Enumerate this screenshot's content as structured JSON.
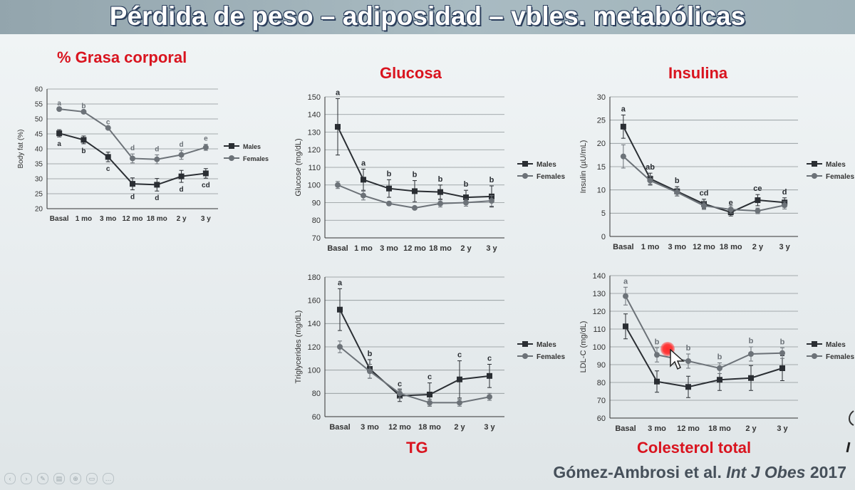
{
  "slide": {
    "title": "Pérdida de peso – adiposidad – vbles. metabólicas",
    "citation_authors": "Gómez-Ambrosi et al.",
    "citation_journal": "Int J Obes",
    "citation_year": "2017",
    "accent_color": "#d9141f"
  },
  "toolbar": {
    "icons": [
      "previous-icon",
      "next-icon",
      "pen-icon",
      "slides-icon",
      "zoom-icon",
      "camera-icon",
      "more-icon"
    ]
  },
  "chart_data": [
    {
      "id": "bodyfat",
      "panel_title": "% Grasa corporal",
      "type": "line",
      "categories": [
        "Basal",
        "1 mo",
        "3 mo",
        "12 mo",
        "18 mo",
        "2 y",
        "3 y"
      ],
      "ylabel": "Body fat (%)",
      "ylim": [
        20,
        60
      ],
      "ystep": 5,
      "grid": true,
      "legend": "right",
      "series": [
        {
          "name": "Males",
          "marker": "square",
          "values": [
            45.2,
            43.0,
            37.3,
            28.3,
            28.0,
            30.8,
            31.8
          ],
          "err": [
            1.2,
            1.3,
            1.6,
            2.0,
            2.1,
            2.0,
            1.6
          ],
          "sig": [
            "a",
            "b",
            "c",
            "d",
            "d",
            "d",
            "cd"
          ],
          "sig_side": "below"
        },
        {
          "name": "Females",
          "marker": "circle",
          "values": [
            53.3,
            52.4,
            47.0,
            36.8,
            36.5,
            38.0,
            40.5
          ],
          "err": [
            0,
            0,
            0,
            1.5,
            1.5,
            1.5,
            1.0
          ],
          "sig": [
            "a",
            "b",
            "c",
            "d",
            "d",
            "d",
            "e"
          ],
          "sig_side": "above"
        }
      ]
    },
    {
      "id": "glucose",
      "panel_title": "Glucosa",
      "type": "line",
      "categories": [
        "Basal",
        "1 mo",
        "3 mo",
        "12 mo",
        "18 mo",
        "2 y",
        "3 y"
      ],
      "ylabel": "Glucose (mg/dL)",
      "ylim": [
        70,
        150
      ],
      "ystep": 10,
      "grid": true,
      "legend": "right",
      "series": [
        {
          "name": "Males",
          "marker": "square",
          "values": [
            133,
            103,
            98,
            96.5,
            96,
            93,
            93.5
          ],
          "err": [
            16,
            6,
            5,
            6,
            4,
            4,
            6
          ],
          "sig": [
            "a",
            "a",
            "b",
            "b",
            "b",
            "b",
            "b"
          ],
          "sig_side": "above"
        },
        {
          "name": "Females",
          "marker": "circle",
          "values": [
            100,
            94,
            89.5,
            87,
            89.5,
            90,
            91
          ],
          "err": [
            2,
            2.5,
            0,
            0,
            2,
            2,
            3
          ],
          "sig": [],
          "sig_side": "above"
        }
      ]
    },
    {
      "id": "insulin",
      "panel_title": "Insulina",
      "type": "line",
      "categories": [
        "Basal",
        "1 mo",
        "3 mo",
        "12 mo",
        "18 mo",
        "2 y",
        "3 y"
      ],
      "ylabel": "Insulin (µU/mL)",
      "ylim": [
        0,
        30
      ],
      "ystep": 5,
      "grid": true,
      "legend": "right",
      "series": [
        {
          "name": "Males",
          "marker": "square",
          "values": [
            23.6,
            12.4,
            9.7,
            7.0,
            5.2,
            7.8,
            7.3
          ],
          "err": [
            2.5,
            1.2,
            1.0,
            1.0,
            0.8,
            1.2,
            1.0
          ],
          "sig": [
            "a",
            "ab",
            "b",
            "cd",
            "e",
            "ce",
            "d"
          ],
          "sig_side": "above"
        },
        {
          "name": "Females",
          "marker": "circle",
          "values": [
            17.2,
            12.0,
            9.5,
            6.6,
            5.8,
            5.5,
            6.7
          ],
          "err": [
            2.5,
            1.0,
            0.8,
            0.8,
            0.8,
            0.6,
            0.8
          ],
          "sig": [],
          "sig_side": "above"
        }
      ]
    },
    {
      "id": "tg",
      "panel_title": "TG",
      "type": "line",
      "categories": [
        "Basal",
        "3 mo",
        "12 mo",
        "18 mo",
        "2 y",
        "3 y"
      ],
      "ylabel": "Triglycerides (mg/dL)",
      "ylim": [
        60,
        180
      ],
      "ystep": 20,
      "grid": true,
      "legend": "right",
      "series": [
        {
          "name": "Males",
          "marker": "square",
          "values": [
            152,
            101,
            78,
            79,
            92,
            95
          ],
          "err": [
            18,
            8,
            5,
            10,
            16,
            10
          ],
          "sig": [
            "a",
            "b",
            "c",
            "c",
            "c",
            "c"
          ],
          "sig_side": "above"
        },
        {
          "name": "Females",
          "marker": "circle",
          "values": [
            120,
            99,
            80,
            72,
            72,
            77
          ],
          "err": [
            5,
            6,
            4,
            3,
            3,
            3
          ],
          "sig": [],
          "sig_side": "above"
        }
      ]
    },
    {
      "id": "ldl",
      "panel_title": "Colesterol total",
      "type": "line",
      "categories": [
        "Basal",
        "3 mo",
        "12 mo",
        "18 mo",
        "2 y",
        "3 y"
      ],
      "ylabel": "LDL-C (mg/dL)",
      "ylim": [
        60,
        140
      ],
      "ystep": 10,
      "grid": true,
      "legend": "right",
      "series": [
        {
          "name": "Males",
          "marker": "square",
          "values": [
            111.5,
            80.5,
            77.5,
            81.5,
            82.5,
            88
          ],
          "err": [
            7,
            6,
            6,
            6,
            7,
            7
          ],
          "sig": [],
          "sig_side": "above"
        },
        {
          "name": "Females",
          "marker": "circle",
          "values": [
            128.5,
            95.5,
            92,
            88,
            96,
            96.5
          ],
          "err": [
            5,
            4,
            4,
            3,
            4,
            3
          ],
          "sig": [
            "a",
            "b",
            "b",
            "b",
            "b",
            "b"
          ],
          "sig_side": "above"
        }
      ]
    }
  ]
}
